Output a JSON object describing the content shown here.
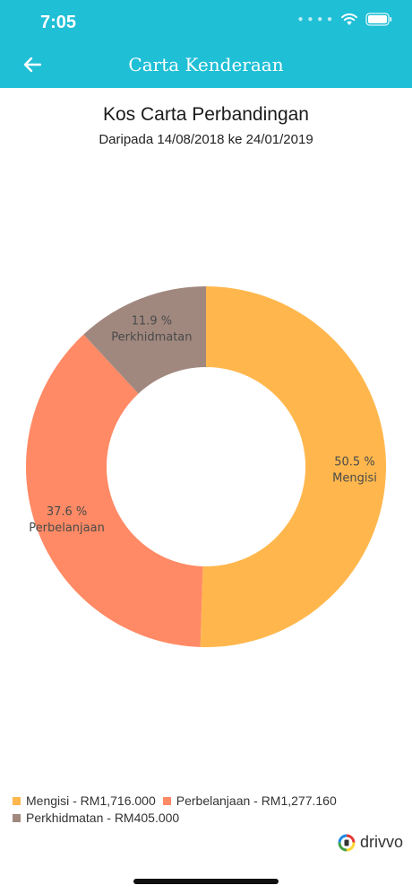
{
  "status_bar": {
    "time": "7:05",
    "icons": [
      "signal-dots-icon",
      "wifi-icon",
      "battery-icon"
    ]
  },
  "app_bar": {
    "title": "Carta Kenderaan",
    "back_icon": "arrow-left-icon"
  },
  "colors": {
    "app_bar": "#1fbfd6",
    "Mengisi": "#ffb74d",
    "Perbelanjaan": "#ff8a65",
    "Perkhidmatan": "#a1887f"
  },
  "chart_data": {
    "type": "pie",
    "style": "donut",
    "title": "Kos Carta Perbandingan",
    "subtitle": "Daripada 14/08/2018 ke 24/01/2019",
    "slices": [
      {
        "name": "Mengisi",
        "value": 1716.0,
        "percent": 50.5,
        "percent_label": "50.5 %",
        "color": "#ffb74d"
      },
      {
        "name": "Perbelanjaan",
        "value": 1277.16,
        "percent": 37.6,
        "percent_label": "37.6 %",
        "color": "#ff8a65"
      },
      {
        "name": "Perkhidmatan",
        "value": 405.0,
        "percent": 11.9,
        "percent_label": "11.9 %",
        "color": "#a1887f"
      }
    ],
    "legend_position": "bottom-left",
    "legend": [
      "Mengisi - RM1,716.000",
      "Perbelanjaan - RM1,277.160",
      "Perkhidmatan - RM405.000"
    ]
  },
  "brand": {
    "name": "drivvo",
    "icon": "drivvo-logo-icon"
  }
}
